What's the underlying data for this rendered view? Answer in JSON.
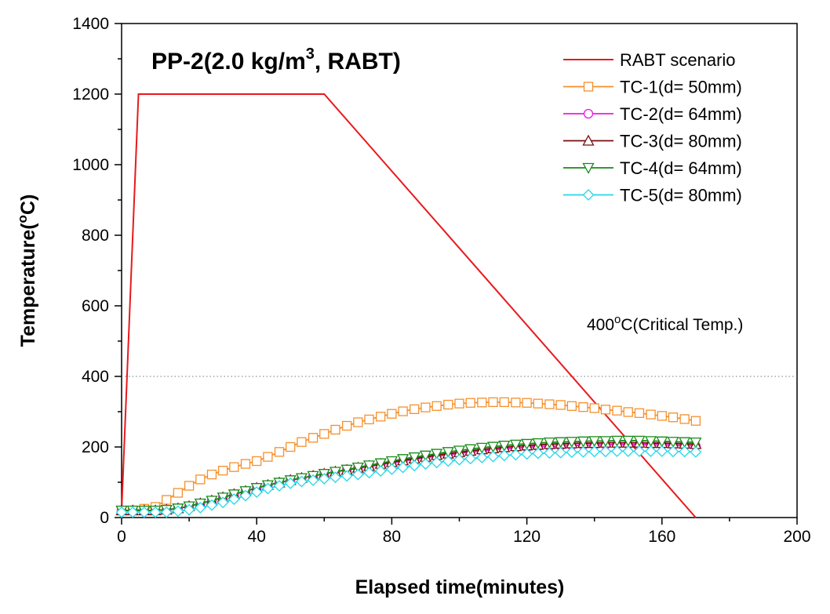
{
  "chart_data": {
    "type": "line",
    "title": "PP-2(2.0 kg/m",
    "title_sup": "3",
    "title_suffix": ", RABT)",
    "xlabel": "Elapsed time(minutes)",
    "ylabel_main": "Temperature(",
    "ylabel_sup": "o",
    "ylabel_suffix": "C)",
    "xlim": [
      0,
      200
    ],
    "ylim": [
      0,
      1400
    ],
    "xticks": [
      "0",
      "40",
      "80",
      "120",
      "160",
      "200"
    ],
    "yticks": [
      "0",
      "200",
      "400",
      "600",
      "800",
      "1000",
      "1200",
      "1400"
    ],
    "xtick_values": [
      0,
      40,
      80,
      120,
      160,
      200
    ],
    "ytick_values": [
      0,
      200,
      400,
      600,
      800,
      1000,
      1200,
      1400
    ],
    "grid": false,
    "legend_position": "top-right",
    "reference_line": {
      "y": 400,
      "style": "dotted"
    },
    "annotation": {
      "prefix": "400",
      "sup": "o",
      "suffix": "C(Critical Temp.)"
    },
    "x": [
      0,
      3.3,
      6.7,
      10,
      13.3,
      16.7,
      20,
      23.3,
      26.7,
      30,
      33.3,
      36.7,
      40,
      43.3,
      46.7,
      50,
      53.3,
      56.7,
      60,
      63.3,
      66.7,
      70,
      73.3,
      76.7,
      80,
      83.3,
      86.7,
      90,
      93.3,
      96.7,
      100,
      103.3,
      106.7,
      110,
      113.3,
      116.7,
      120,
      123.3,
      126.7,
      130,
      133.3,
      136.7,
      140,
      143.3,
      146.7,
      150,
      153.3,
      156.7,
      160,
      163.3,
      166.7,
      170
    ],
    "series": [
      {
        "name": "RABT scenario",
        "color": "#e8191c",
        "marker": "none",
        "points": [
          [
            0,
            20
          ],
          [
            5,
            1200
          ],
          [
            60,
            1200
          ],
          [
            170,
            0
          ]
        ]
      },
      {
        "name": "TC-1(d= 50mm)",
        "color": "#f5902c",
        "marker": "square",
        "values": [
          20,
          20,
          25,
          30,
          50,
          70,
          90,
          108,
          122,
          133,
          143,
          152,
          160,
          172,
          186,
          200,
          214,
          226,
          237,
          249,
          260,
          270,
          278,
          286,
          294,
          301,
          307,
          312,
          316,
          320,
          323,
          325,
          326,
          327,
          327,
          326,
          325,
          323,
          321,
          319,
          316,
          313,
          310,
          306,
          303,
          299,
          296,
          292,
          288,
          284,
          279,
          274
        ]
      },
      {
        "name": "TC-2(d= 64mm)",
        "color": "#ec19e0",
        "marker": "circle",
        "values": [
          20,
          20,
          20,
          20,
          22,
          26,
          32,
          40,
          48,
          57,
          66,
          75,
          84,
          92,
          99,
          106,
          112,
          118,
          124,
          130,
          135,
          140,
          145,
          150,
          155,
          160,
          165,
          170,
          174,
          178,
          182,
          186,
          189,
          192,
          195,
          197,
          199,
          201,
          202,
          203,
          204,
          205,
          206,
          206,
          207,
          207,
          207,
          206,
          206,
          205,
          204,
          203
        ]
      },
      {
        "name": "TC-3(d= 80mm)",
        "color": "#7b0a0a",
        "marker": "triangle-up",
        "values": [
          20,
          20,
          20,
          20,
          22,
          26,
          32,
          40,
          48,
          57,
          66,
          75,
          84,
          92,
          99,
          106,
          112,
          118,
          124,
          130,
          135,
          141,
          146,
          152,
          157,
          162,
          167,
          172,
          177,
          181,
          185,
          189,
          193,
          196,
          199,
          202,
          204,
          206,
          208,
          209,
          210,
          211,
          211,
          212,
          212,
          212,
          212,
          211,
          211,
          210,
          209,
          208
        ]
      },
      {
        "name": "TC-4(d= 64mm)",
        "color": "#178a17",
        "marker": "triangle-down",
        "values": [
          20,
          20,
          20,
          20,
          22,
          26,
          32,
          40,
          48,
          57,
          66,
          75,
          84,
          92,
          99,
          106,
          112,
          118,
          124,
          130,
          136,
          142,
          148,
          154,
          160,
          166,
          171,
          176,
          181,
          186,
          190,
          194,
          198,
          201,
          204,
          207,
          209,
          211,
          213,
          214,
          215,
          216,
          217,
          217,
          218,
          218,
          218,
          217,
          216,
          215,
          214,
          213
        ]
      },
      {
        "name": "TC-5(d= 80mm)",
        "color": "#22d8e8",
        "marker": "diamond",
        "values": [
          15,
          15,
          15,
          15,
          15,
          18,
          22,
          28,
          35,
          43,
          52,
          62,
          72,
          82,
          90,
          97,
          102,
          106,
          110,
          114,
          118,
          122,
          127,
          132,
          137,
          142,
          147,
          152,
          156,
          160,
          164,
          167,
          170,
          173,
          176,
          178,
          180,
          182,
          183,
          184,
          185,
          186,
          187,
          187,
          188,
          188,
          188,
          188,
          188,
          187,
          187,
          186
        ]
      }
    ]
  }
}
